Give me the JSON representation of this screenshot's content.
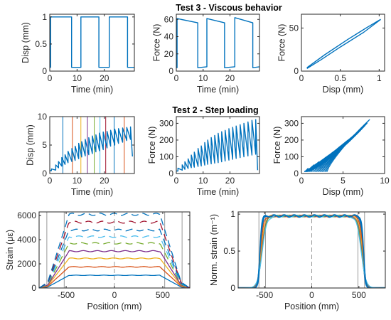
{
  "figure": {
    "titles": {
      "test3": "Test 3 - Viscous behavior",
      "test2": "Test 2 - Step loading"
    }
  },
  "colors": {
    "blue": "#0072BD",
    "orange": "#D95319",
    "yellow": "#EDB120",
    "purple": "#7E2F8E",
    "green": "#77AC30",
    "cyan": "#4DBEEE",
    "red": "#A2142F",
    "grey": "#999999"
  },
  "chart_data": [
    {
      "id": "t3-disp",
      "type": "line",
      "xlabel": "Time (min)",
      "ylabel": "Disp (mm)",
      "xlim": [
        0,
        31
      ],
      "ylim": [
        0,
        1.05
      ],
      "xticks": [
        0,
        10,
        20
      ],
      "yticks": [
        0,
        0.5,
        1
      ],
      "yticklabels": [
        "0",
        "0.5",
        "1"
      ],
      "series": [
        {
          "color": "blue",
          "x": [
            0,
            0.3,
            0.3,
            8,
            8,
            11.4,
            11.4,
            18,
            18,
            21.8,
            21.8,
            28.5,
            28.5,
            31
          ],
          "y": [
            0.07,
            0.07,
            1.0,
            1.0,
            0.07,
            0.07,
            1.0,
            1.0,
            0.07,
            0.07,
            1.0,
            1.0,
            0.07,
            0.07
          ]
        }
      ]
    },
    {
      "id": "t3-force-time",
      "type": "line",
      "xlabel": "Time (min)",
      "ylabel": "Force (N)",
      "xlim": [
        0,
        31
      ],
      "ylim": [
        0,
        66
      ],
      "xticks": [
        0,
        10,
        20
      ],
      "yticks": [
        0,
        20,
        40,
        60
      ],
      "series": [
        {
          "color": "blue",
          "x": [
            0,
            0.3,
            0.3,
            8,
            8,
            11.4,
            11.4,
            18,
            18,
            21.8,
            21.8,
            28.5,
            28.5,
            31
          ],
          "y": [
            4,
            4,
            61,
            56,
            4,
            5,
            61,
            56,
            4,
            5,
            62,
            56,
            4,
            5
          ]
        }
      ]
    },
    {
      "id": "t3-force-disp",
      "type": "line",
      "xlabel": "Disp (mm)",
      "ylabel": "Force (N)",
      "xlim": [
        0,
        1.07
      ],
      "ylim": [
        0,
        66
      ],
      "xticks": [
        0,
        0.5,
        1
      ],
      "xticklabels": [
        "0",
        "0.5",
        "1"
      ],
      "yticks": [
        0,
        50
      ],
      "series": [
        {
          "color": "blue",
          "x": [
            0.07,
            0.3,
            0.6,
            0.85,
            1.0,
            1.02
          ],
          "y": [
            4,
            19,
            37,
            51,
            59,
            60
          ]
        },
        {
          "color": "blue",
          "x": [
            1.02,
            0.8,
            0.5,
            0.25,
            0.07
          ],
          "y": [
            60,
            45,
            28,
            13,
            3
          ]
        }
      ]
    },
    {
      "id": "t2-disp",
      "type": "line",
      "xlabel": "Time (min)",
      "ylabel": "Disp (mm)",
      "xlim": [
        0,
        31
      ],
      "ylim": [
        0,
        10
      ],
      "xticks": [
        0,
        10,
        20
      ],
      "yticks": [
        0,
        5,
        10
      ],
      "verticals": [
        {
          "x": 4.8,
          "color": "blue"
        },
        {
          "x": 8.3,
          "color": "orange"
        },
        {
          "x": 11.4,
          "color": "yellow"
        },
        {
          "x": 13.8,
          "color": "purple"
        },
        {
          "x": 16.3,
          "color": "green"
        },
        {
          "x": 18.4,
          "color": "cyan"
        },
        {
          "x": 20.5,
          "color": "red"
        },
        {
          "x": 23.6,
          "color": "blue"
        },
        {
          "x": 27.3,
          "color": "orange"
        }
      ],
      "series": [
        {
          "color": "blue",
          "x": [
            0,
            0.6,
            0.6,
            2.2,
            2.2,
            3.2,
            3.2,
            4.4,
            4.4,
            5.6,
            5.6,
            6.7,
            6.7,
            8.1,
            8.1,
            9.3,
            9.3,
            10.6,
            10.6,
            11.7,
            11.7,
            13.0,
            13.0,
            14.3,
            14.3,
            15.6,
            15.6,
            16.9,
            16.9,
            18.2,
            18.2,
            19.6,
            19.6,
            21.0,
            21.0,
            22.3,
            22.3,
            23.8,
            23.8,
            25.2,
            25.2,
            26.7,
            26.7,
            28.2,
            28.2,
            29.6,
            29.6,
            30.3
          ],
          "y": [
            0.5,
            0.5,
            0.8,
            0.6,
            1.5,
            1.0,
            2.1,
            1.3,
            2.8,
            1.6,
            3.3,
            1.9,
            3.9,
            2.1,
            4.4,
            2.3,
            4.8,
            2.6,
            5.3,
            2.9,
            5.6,
            3.1,
            6.0,
            3.3,
            6.3,
            3.5,
            6.6,
            3.8,
            6.8,
            4.0,
            7.1,
            4.2,
            7.3,
            4.5,
            7.4,
            4.8,
            7.6,
            5.0,
            7.8,
            5.3,
            7.9,
            5.5,
            8.0,
            5.8,
            8.1,
            6.0,
            8.2,
            3.0
          ]
        }
      ]
    },
    {
      "id": "t2-force-time",
      "type": "line",
      "xlabel": "Time (min)",
      "ylabel": "Force (N)",
      "xlim": [
        0,
        31
      ],
      "ylim": [
        0,
        340
      ],
      "xticks": [
        0,
        10,
        20
      ],
      "yticks": [
        0,
        100,
        200,
        300
      ],
      "series": [
        {
          "color": "blue",
          "x": [
            0,
            0.6,
            0.6,
            2.2,
            2.2,
            3.2,
            3.2,
            4.4,
            4.4,
            5.6,
            5.6,
            6.7,
            6.7,
            8.1,
            8.1,
            9.3,
            9.3,
            10.6,
            10.6,
            11.7,
            11.7,
            13.0,
            13.0,
            14.3,
            14.3,
            15.6,
            15.6,
            16.9,
            16.9,
            18.2,
            18.2,
            19.6,
            19.6,
            21.0,
            21.0,
            22.3,
            22.3,
            23.8,
            23.8,
            25.2,
            25.2,
            26.7,
            26.7,
            28.2,
            28.2,
            29.6,
            29.6,
            30.3
          ],
          "y": [
            15,
            15,
            32,
            20,
            52,
            25,
            70,
            30,
            88,
            35,
            110,
            38,
            128,
            42,
            150,
            45,
            165,
            50,
            185,
            55,
            200,
            58,
            215,
            62,
            228,
            65,
            240,
            70,
            250,
            75,
            258,
            80,
            268,
            85,
            276,
            90,
            284,
            95,
            292,
            100,
            300,
            105,
            308,
            110,
            318,
            115,
            322,
            20
          ]
        }
      ]
    },
    {
      "id": "t2-force-disp",
      "type": "line",
      "xlabel": "Disp (mm)",
      "ylabel": "Force (N)",
      "xlim": [
        0,
        10
      ],
      "ylim": [
        0,
        340
      ],
      "xticks": [
        0,
        5,
        10
      ],
      "yticks": [
        0,
        100,
        200,
        300
      ],
      "loops": [
        {
          "d": 0.8,
          "f": 32,
          "r": 0.5
        },
        {
          "d": 1.5,
          "f": 52,
          "r": 0.6
        },
        {
          "d": 2.1,
          "f": 70,
          "r": 0.7
        },
        {
          "d": 2.8,
          "f": 88,
          "r": 0.9
        },
        {
          "d": 3.3,
          "f": 110,
          "r": 1.0
        },
        {
          "d": 3.9,
          "f": 128,
          "r": 1.2
        },
        {
          "d": 4.4,
          "f": 150,
          "r": 1.4
        },
        {
          "d": 4.8,
          "f": 165,
          "r": 1.6
        },
        {
          "d": 5.3,
          "f": 185,
          "r": 1.8
        },
        {
          "d": 5.6,
          "f": 200,
          "r": 2.0
        },
        {
          "d": 6.0,
          "f": 215,
          "r": 2.2
        },
        {
          "d": 6.3,
          "f": 228,
          "r": 2.4
        },
        {
          "d": 6.6,
          "f": 240,
          "r": 2.6
        },
        {
          "d": 6.8,
          "f": 250,
          "r": 2.8
        },
        {
          "d": 7.1,
          "f": 258,
          "r": 3.0
        },
        {
          "d": 7.3,
          "f": 268,
          "r": 3.2
        },
        {
          "d": 7.6,
          "f": 284,
          "r": 3.4
        },
        {
          "d": 7.9,
          "f": 300,
          "r": 3.6
        },
        {
          "d": 8.1,
          "f": 318,
          "r": 3.8
        },
        {
          "d": 8.2,
          "f": 322,
          "r": 4.0
        }
      ]
    },
    {
      "id": "strain-profile",
      "type": "line",
      "xlabel": "Position (mm)",
      "ylabel": "Strain (με)",
      "xlim": [
        -780,
        780
      ],
      "ylim": [
        0,
        6300
      ],
      "xticks": [
        -500,
        0,
        500
      ],
      "yticks": [
        0,
        2000,
        4000,
        6000
      ],
      "vlines": [
        -700,
        -520,
        520,
        700
      ],
      "center_line": 0,
      "levels": [
        {
          "plateau": 1050,
          "color": "blue",
          "dash": false
        },
        {
          "plateau": 1750,
          "color": "orange",
          "dash": false
        },
        {
          "plateau": 2450,
          "color": "yellow",
          "dash": false
        },
        {
          "plateau": 3050,
          "color": "purple",
          "dash": false
        },
        {
          "plateau": 3700,
          "color": "green",
          "dash": true
        },
        {
          "plateau": 4250,
          "color": "cyan",
          "dash": true
        },
        {
          "plateau": 4800,
          "color": "blue",
          "dash": true
        },
        {
          "plateau": 5450,
          "color": "red",
          "dash": true
        },
        {
          "plateau": 6100,
          "color": "blue",
          "dash": true
        }
      ]
    },
    {
      "id": "norm-strain",
      "type": "line",
      "xlabel": "Position (mm)",
      "ylabel": "Norm. strain (m⁻¹)",
      "xlim": [
        -780,
        780
      ],
      "ylim": [
        0,
        1.03
      ],
      "xticks": [
        -500,
        0,
        500
      ],
      "yticks": [
        0,
        0.5,
        1
      ],
      "yticklabels": [
        "0",
        "0.5",
        "1"
      ],
      "vlines": [
        -560,
        -490,
        490,
        560
      ],
      "center_line": 0,
      "curves": [
        {
          "color": "blue",
          "lw": 2.4,
          "edge": 545,
          "width": 55
        },
        {
          "color": "orange",
          "lw": 1.4,
          "edge": 540,
          "width": 75
        },
        {
          "color": "yellow",
          "lw": 1.2,
          "edge": 535,
          "width": 90
        },
        {
          "color": "purple",
          "lw": 1.2,
          "edge": 530,
          "width": 100
        },
        {
          "color": "green",
          "lw": 1.2,
          "edge": 528,
          "width": 110
        },
        {
          "color": "cyan",
          "lw": 1.2,
          "edge": 525,
          "width": 120
        },
        {
          "color": "blue",
          "lw": 1.6,
          "edge": 550,
          "width": 50
        }
      ]
    }
  ]
}
